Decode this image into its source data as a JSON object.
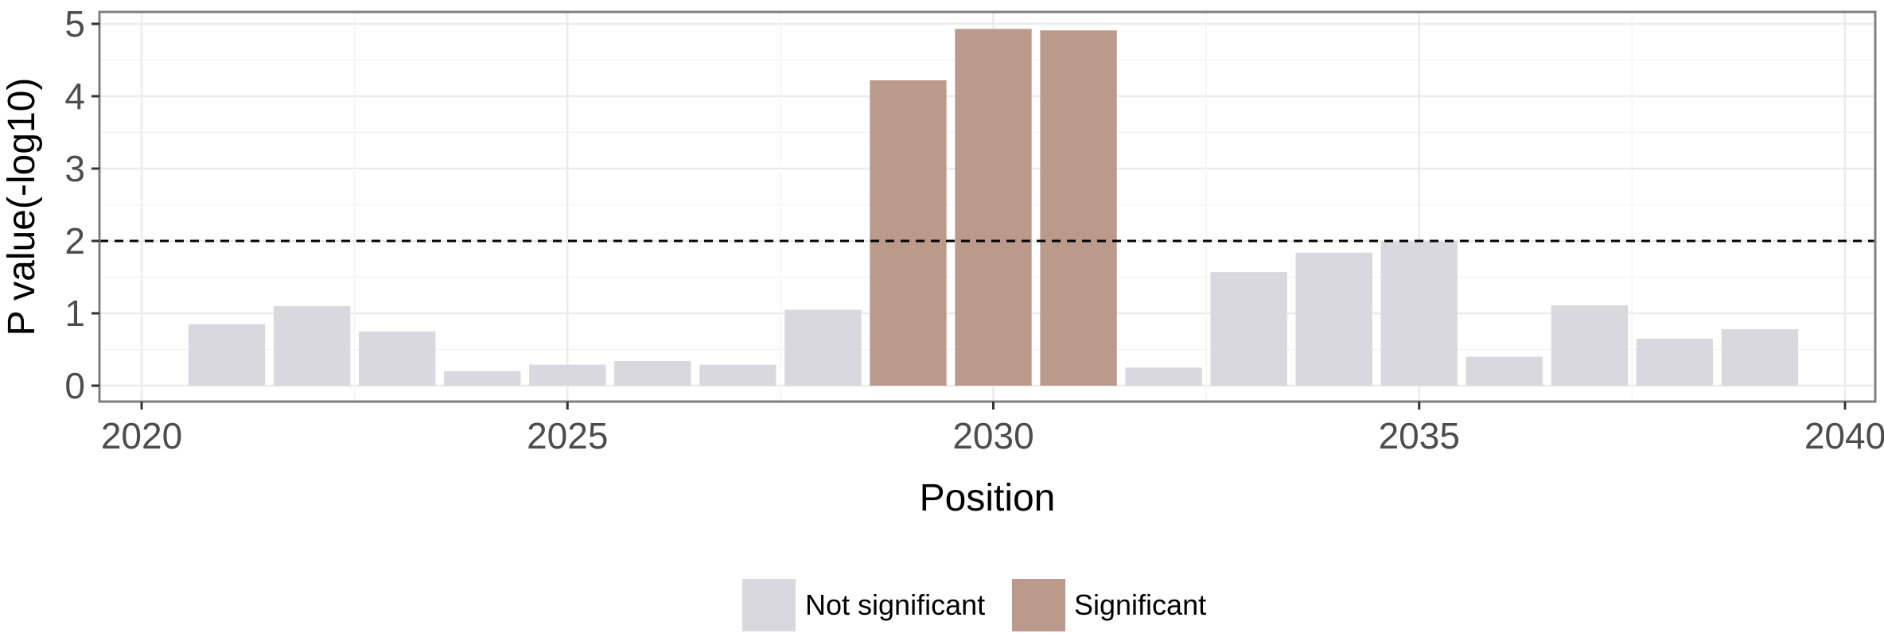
{
  "chart_data": {
    "type": "bar",
    "xlabel": "Position",
    "ylabel": "P value(-log10)",
    "xlim": [
      2020,
      2040
    ],
    "ylim": [
      0,
      5
    ],
    "x_ticks": [
      2020,
      2025,
      2030,
      2035,
      2040
    ],
    "y_ticks": [
      0,
      1,
      2,
      3,
      4,
      5
    ],
    "grid": true,
    "threshold": 2,
    "legend_position": "bottom",
    "series": [
      {
        "name": "Not significant",
        "color": "#d9d8de"
      },
      {
        "name": "Significant",
        "color": "#bb9a8c"
      }
    ],
    "bars": [
      {
        "x": 2021,
        "value": 0.85,
        "group": "Not significant"
      },
      {
        "x": 2022,
        "value": 1.1,
        "group": "Not significant"
      },
      {
        "x": 2023,
        "value": 0.75,
        "group": "Not significant"
      },
      {
        "x": 2024,
        "value": 0.2,
        "group": "Not significant"
      },
      {
        "x": 2025,
        "value": 0.29,
        "group": "Not significant"
      },
      {
        "x": 2026,
        "value": 0.34,
        "group": "Not significant"
      },
      {
        "x": 2027,
        "value": 0.29,
        "group": "Not significant"
      },
      {
        "x": 2028,
        "value": 1.05,
        "group": "Not significant"
      },
      {
        "x": 2029,
        "value": 4.22,
        "group": "Significant"
      },
      {
        "x": 2030,
        "value": 4.93,
        "group": "Significant"
      },
      {
        "x": 2031,
        "value": 4.91,
        "group": "Significant"
      },
      {
        "x": 2032,
        "value": 0.25,
        "group": "Not significant"
      },
      {
        "x": 2033,
        "value": 1.57,
        "group": "Not significant"
      },
      {
        "x": 2034,
        "value": 1.84,
        "group": "Not significant"
      },
      {
        "x": 2035,
        "value": 1.99,
        "group": "Not significant"
      },
      {
        "x": 2036,
        "value": 0.4,
        "group": "Not significant"
      },
      {
        "x": 2037,
        "value": 1.11,
        "group": "Not significant"
      },
      {
        "x": 2038,
        "value": 0.65,
        "group": "Not significant"
      },
      {
        "x": 2039,
        "value": 0.78,
        "group": "Not significant"
      }
    ]
  }
}
